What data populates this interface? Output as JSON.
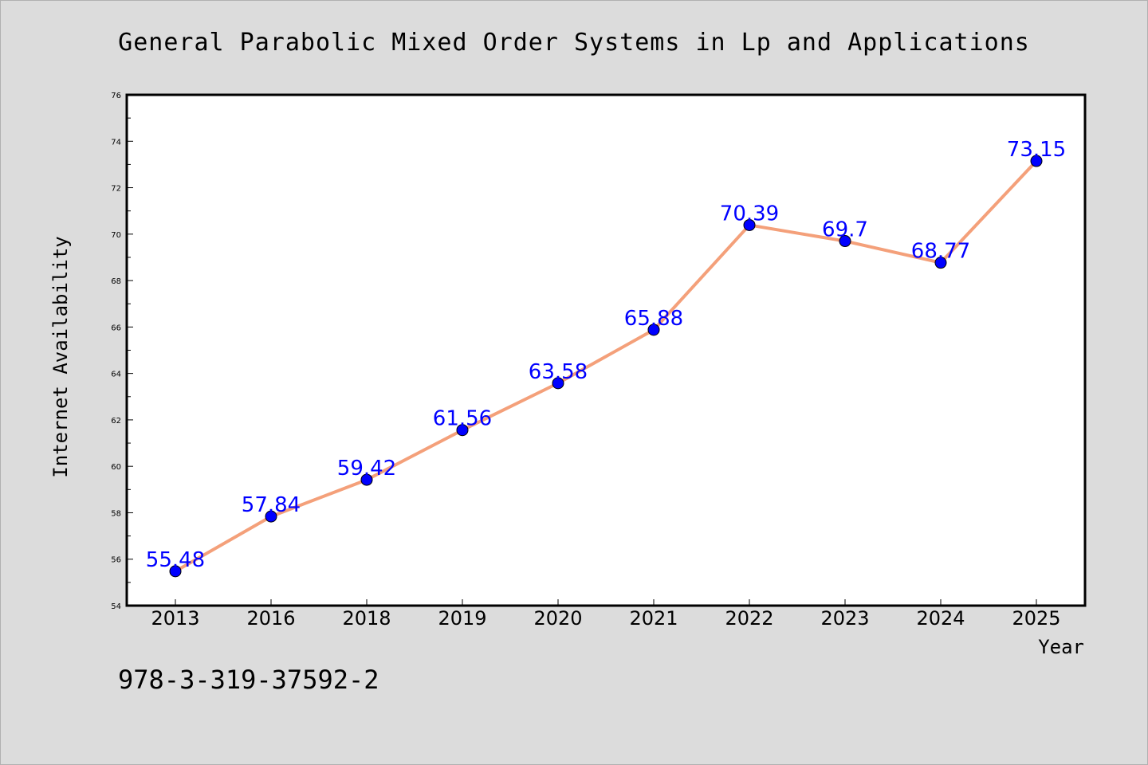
{
  "chart_data": {
    "type": "line",
    "title": "General Parabolic Mixed Order Systems in Lp and Applications",
    "xlabel": "Year",
    "ylabel": "Internet Availability",
    "categories": [
      "2013",
      "2016",
      "2018",
      "2019",
      "2020",
      "2021",
      "2022",
      "2023",
      "2024",
      "2025"
    ],
    "series": [
      {
        "values": [
          55.48,
          57.84,
          59.42,
          61.56,
          63.58,
          65.88,
          70.39,
          69.7,
          68.77,
          73.15
        ],
        "data_labels": [
          "55.48",
          "57.84",
          "59.42",
          "61.56",
          "63.58",
          "65.88",
          "70.39",
          "69.7",
          "68.77",
          "73.15"
        ],
        "line_color": "#f4a07a",
        "marker_color": "#0000ff"
      }
    ],
    "ylim": [
      54,
      76
    ],
    "yticks": [
      54,
      56,
      58,
      60,
      62,
      64,
      66,
      68,
      70,
      72,
      74,
      76
    ],
    "grid": false,
    "legend": "none"
  },
  "footer_text": "978-3-319-37592-2",
  "colors": {
    "background": "#dcdcdc",
    "plot_background": "#ffffff",
    "line": "#f4a07a",
    "marker": "#0000ff",
    "label": "#0000ff"
  }
}
